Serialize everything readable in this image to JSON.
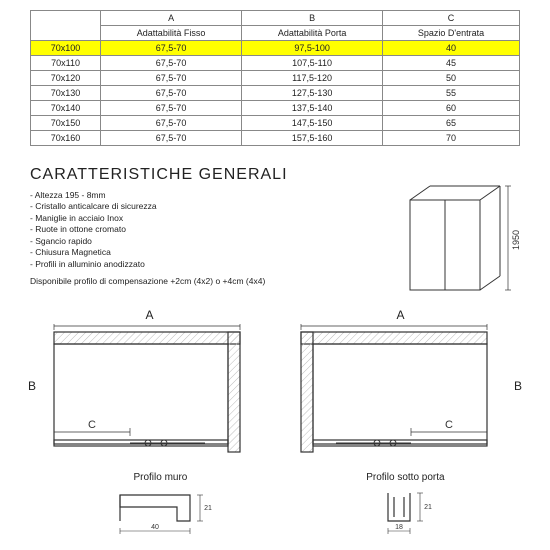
{
  "table": {
    "cols": [
      {
        "letter": "A",
        "label": "Adattabilità Fisso"
      },
      {
        "letter": "B",
        "label": "Adattabilità Porta"
      },
      {
        "letter": "C",
        "label": "Spazio D'entrata"
      }
    ],
    "rows": [
      {
        "size": "70x100",
        "a": "67,5-70",
        "b": "97,5-100",
        "c": "40",
        "highlight": true
      },
      {
        "size": "70x110",
        "a": "67,5-70",
        "b": "107,5-110",
        "c": "45",
        "highlight": false
      },
      {
        "size": "70x120",
        "a": "67,5-70",
        "b": "117,5-120",
        "c": "50",
        "highlight": false
      },
      {
        "size": "70x130",
        "a": "67,5-70",
        "b": "127,5-130",
        "c": "55",
        "highlight": false
      },
      {
        "size": "70x140",
        "a": "67,5-70",
        "b": "137,5-140",
        "c": "60",
        "highlight": false
      },
      {
        "size": "70x150",
        "a": "67,5-70",
        "b": "147,5-150",
        "c": "65",
        "highlight": false
      },
      {
        "size": "70x160",
        "a": "67,5-70",
        "b": "157,5-160",
        "c": "70",
        "highlight": false
      }
    ]
  },
  "section_title": "CARATTERISTICHE GENERALI",
  "features": [
    "Altezza 195 - 8mm",
    "Cristallo anticalcare di sicurezza",
    "Maniglie in acciaio Inox",
    "Ruote in ottone cromato",
    "Sgancio rapido",
    "Chiusura Magnetica",
    "Profili in alluminio anodizzato"
  ],
  "note": "Disponibile profilo di compensazione +2cm (4x2) o +4cm (4x4)",
  "elevation": {
    "height_label": "1950"
  },
  "plans": {
    "label_a": "A",
    "label_b": "B",
    "label_c": "C"
  },
  "profiles": {
    "wall": {
      "title": "Profilo muro",
      "w": "40",
      "h": "21"
    },
    "door": {
      "title": "Profilo sotto porta",
      "w": "18",
      "h": "21"
    }
  },
  "colors": {
    "highlight": "#ffff00",
    "line": "#333333",
    "thin": "#666666",
    "hatch": "#bbbbbb"
  }
}
